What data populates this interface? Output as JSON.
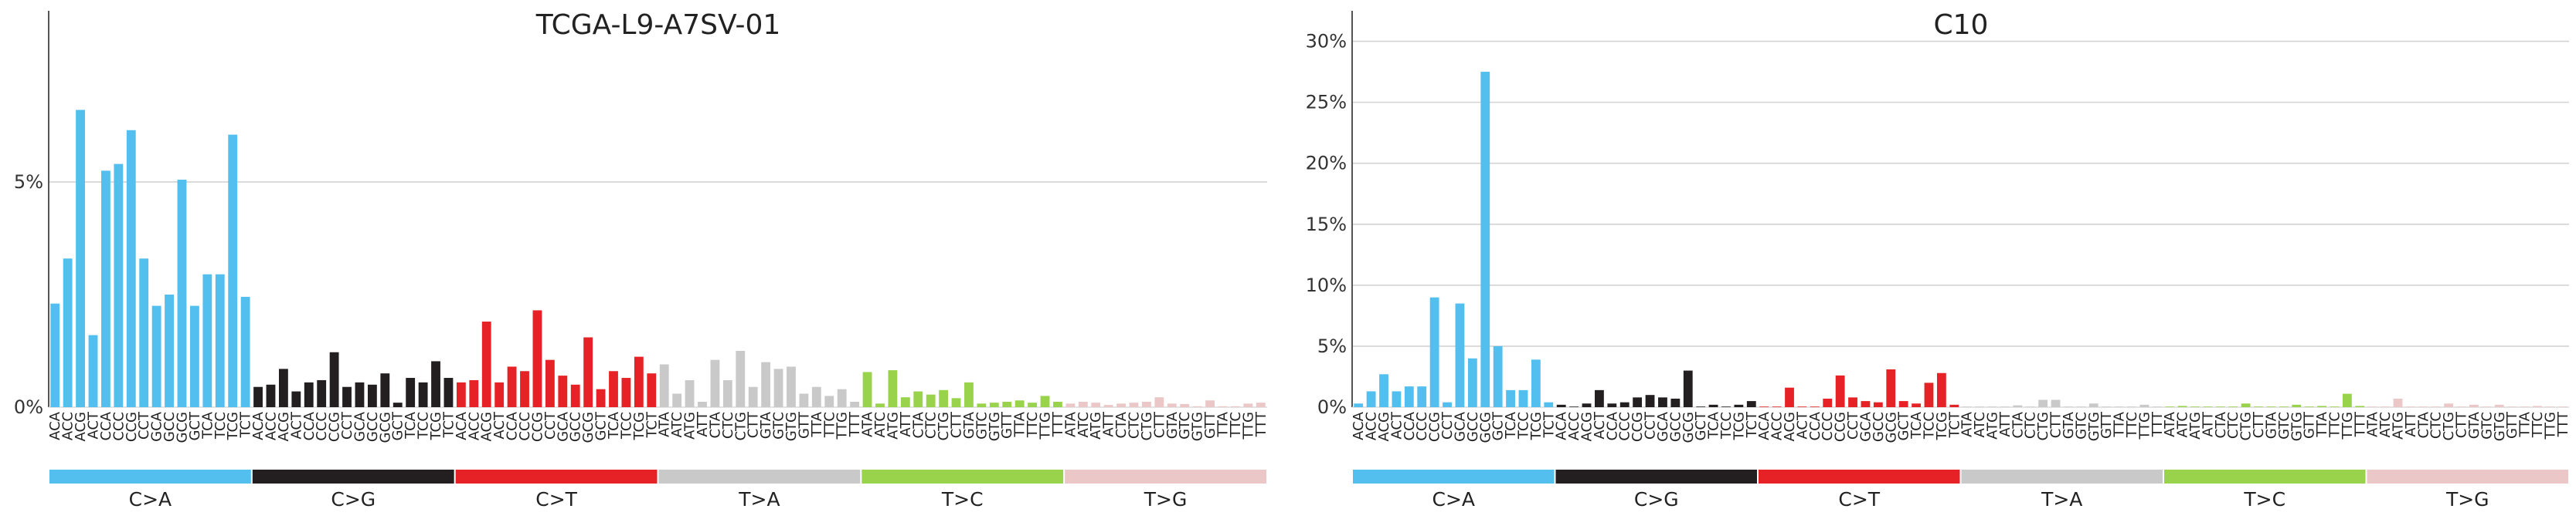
{
  "colors": {
    "C>A": "#52bfee",
    "C>G": "#231f20",
    "C>T": "#e62226",
    "T>A": "#cac9ca",
    "T>C": "#99d34b",
    "T>G": "#ecc7c7",
    "grid": "#d3d3d3",
    "axis": "#555555"
  },
  "categories": [
    "A[C>A]A",
    "A[C>A]C",
    "A[C>A]G",
    "A[C>A]T",
    "C[C>A]A",
    "C[C>A]C",
    "C[C>A]G",
    "C[C>A]T",
    "G[C>A]A",
    "G[C>A]C",
    "G[C>A]G",
    "G[C>A]T",
    "T[C>A]A",
    "T[C>A]C",
    "T[C>A]G",
    "T[C>A]T",
    "A[C>G]A",
    "A[C>G]C",
    "A[C>G]G",
    "A[C>G]T",
    "C[C>G]A",
    "C[C>G]C",
    "C[C>G]G",
    "C[C>G]T",
    "G[C>G]A",
    "G[C>G]C",
    "G[C>G]G",
    "G[C>G]T",
    "T[C>G]A",
    "T[C>G]C",
    "T[C>G]G",
    "T[C>G]T",
    "A[C>T]A",
    "A[C>T]C",
    "A[C>T]G",
    "A[C>T]T",
    "C[C>T]A",
    "C[C>T]C",
    "C[C>T]G",
    "C[C>T]T",
    "G[C>T]A",
    "G[C>T]C",
    "G[C>T]G",
    "G[C>T]T",
    "T[C>T]A",
    "T[C>T]C",
    "T[C>T]G",
    "T[C>T]T",
    "A[T>A]A",
    "A[T>A]C",
    "A[T>A]G",
    "A[T>A]T",
    "C[T>A]A",
    "C[T>A]C",
    "C[T>A]G",
    "C[T>A]T",
    "G[T>A]A",
    "G[T>A]C",
    "G[T>A]G",
    "G[T>A]T",
    "T[T>A]A",
    "T[T>A]C",
    "T[T>A]G",
    "T[T>A]T",
    "A[T>C]A",
    "A[T>C]C",
    "A[T>C]G",
    "A[T>C]T",
    "C[T>C]A",
    "C[T>C]C",
    "C[T>C]G",
    "C[T>C]T",
    "G[T>C]A",
    "G[T>C]C",
    "G[T>C]G",
    "G[T>C]T",
    "T[T>C]A",
    "T[T>C]C",
    "T[T>C]G",
    "T[T>C]T",
    "A[T>G]A",
    "A[T>G]C",
    "A[T>G]G",
    "A[T>G]T",
    "C[T>G]A",
    "C[T>G]C",
    "C[T>G]G",
    "C[T>G]T",
    "G[T>G]A",
    "G[T>G]C",
    "G[T>G]G",
    "G[T>G]T",
    "T[T>G]A",
    "T[T>G]C",
    "T[T>G]G",
    "T[T>G]T"
  ],
  "x_tick_labels": [
    "ACA",
    "ACC",
    "ACG",
    "ACT",
    "CCA",
    "CCC",
    "CCG",
    "CCT",
    "GCA",
    "GCC",
    "GCG",
    "GCT",
    "TCA",
    "TCC",
    "TCG",
    "TCT",
    "ACA",
    "ACC",
    "ACG",
    "ACT",
    "CCA",
    "CCC",
    "CCG",
    "CCT",
    "GCA",
    "GCC",
    "GCG",
    "GCT",
    "TCA",
    "TCC",
    "TCG",
    "TCT",
    "ACA",
    "ACC",
    "ACG",
    "ACT",
    "CCA",
    "CCC",
    "CCG",
    "CCT",
    "GCA",
    "GCC",
    "GCG",
    "GCT",
    "TCA",
    "TCC",
    "TCG",
    "TCT",
    "ATA",
    "ATC",
    "ATG",
    "ATT",
    "CTA",
    "CTC",
    "CTG",
    "CTT",
    "GTA",
    "GTC",
    "GTG",
    "GTT",
    "TTA",
    "TTC",
    "TTG",
    "TTT",
    "ATA",
    "ATC",
    "ATG",
    "ATT",
    "CTA",
    "CTC",
    "CTG",
    "CTT",
    "GTA",
    "GTC",
    "GTG",
    "GTT",
    "TTA",
    "TTC",
    "TTG",
    "TTT",
    "ATA",
    "ATC",
    "ATG",
    "ATT",
    "CTA",
    "CTC",
    "CTG",
    "CTT",
    "GTA",
    "GTC",
    "GTG",
    "GTT",
    "TTA",
    "TTC",
    "TTG",
    "TTT"
  ],
  "mutation_types": [
    "C>A",
    "C>G",
    "C>T",
    "T>A",
    "T>C",
    "T>G"
  ],
  "chart_data": [
    {
      "type": "bar",
      "title": "TCGA-L9-A7SV-01",
      "ylim": [
        0,
        8.8
      ],
      "yticks": [
        0,
        5
      ],
      "ytick_labels": [
        "0%",
        "5%"
      ],
      "grid": true,
      "values": [
        2.3,
        3.3,
        6.6,
        1.6,
        5.25,
        5.4,
        6.15,
        3.3,
        2.25,
        2.5,
        5.05,
        2.25,
        2.95,
        2.95,
        6.05,
        2.45,
        0.45,
        0.5,
        0.85,
        0.35,
        0.55,
        0.6,
        1.22,
        0.45,
        0.55,
        0.5,
        0.75,
        0.1,
        0.65,
        0.55,
        1.02,
        0.65,
        0.55,
        0.6,
        1.9,
        0.55,
        0.9,
        0.8,
        2.15,
        1.05,
        0.7,
        0.5,
        1.55,
        0.4,
        0.8,
        0.65,
        1.12,
        0.75,
        0.95,
        0.3,
        0.6,
        0.12,
        1.05,
        0.6,
        1.25,
        0.45,
        1.0,
        0.85,
        0.9,
        0.3,
        0.45,
        0.25,
        0.4,
        0.12,
        0.78,
        0.08,
        0.82,
        0.22,
        0.35,
        0.28,
        0.38,
        0.2,
        0.55,
        0.08,
        0.1,
        0.12,
        0.15,
        0.1,
        0.25,
        0.12,
        0.08,
        0.12,
        0.1,
        0.05,
        0.08,
        0.1,
        0.12,
        0.22,
        0.08,
        0.07,
        0.02,
        0.15,
        0.02,
        0.02,
        0.08,
        0.1
      ]
    },
    {
      "type": "bar",
      "title": "C10",
      "ylim": [
        0,
        32.5
      ],
      "yticks": [
        0,
        5,
        10,
        15,
        20,
        25,
        30
      ],
      "ytick_labels": [
        "0%",
        "5%",
        "10%",
        "15%",
        "20%",
        "25%",
        "30%"
      ],
      "grid": true,
      "values": [
        0.3,
        1.3,
        2.7,
        1.3,
        1.7,
        1.7,
        9.0,
        0.4,
        8.5,
        4.0,
        27.5,
        5.0,
        1.4,
        1.4,
        3.9,
        0.4,
        0.2,
        0.05,
        0.3,
        1.4,
        0.3,
        0.4,
        0.8,
        1.0,
        0.8,
        0.7,
        3.0,
        0.05,
        0.2,
        0.05,
        0.2,
        0.5,
        0.05,
        0.05,
        1.6,
        0.05,
        0.05,
        0.7,
        2.6,
        0.8,
        0.5,
        0.4,
        3.1,
        0.5,
        0.3,
        2.0,
        2.8,
        0.2,
        0.05,
        0.05,
        0.05,
        0.05,
        0.15,
        0.05,
        0.6,
        0.6,
        0.05,
        0.05,
        0.3,
        0.05,
        0.05,
        0.05,
        0.2,
        0.05,
        0.05,
        0.1,
        0.05,
        0.05,
        0.05,
        0.05,
        0.3,
        0.05,
        0.05,
        0.05,
        0.2,
        0.05,
        0.1,
        0.05,
        1.1,
        0.1,
        0.05,
        0.05,
        0.7,
        0.05,
        0.05,
        0.05,
        0.3,
        0.05,
        0.2,
        0.05,
        0.2,
        0.05,
        0.05,
        0.1,
        0.05,
        0.05
      ]
    }
  ]
}
